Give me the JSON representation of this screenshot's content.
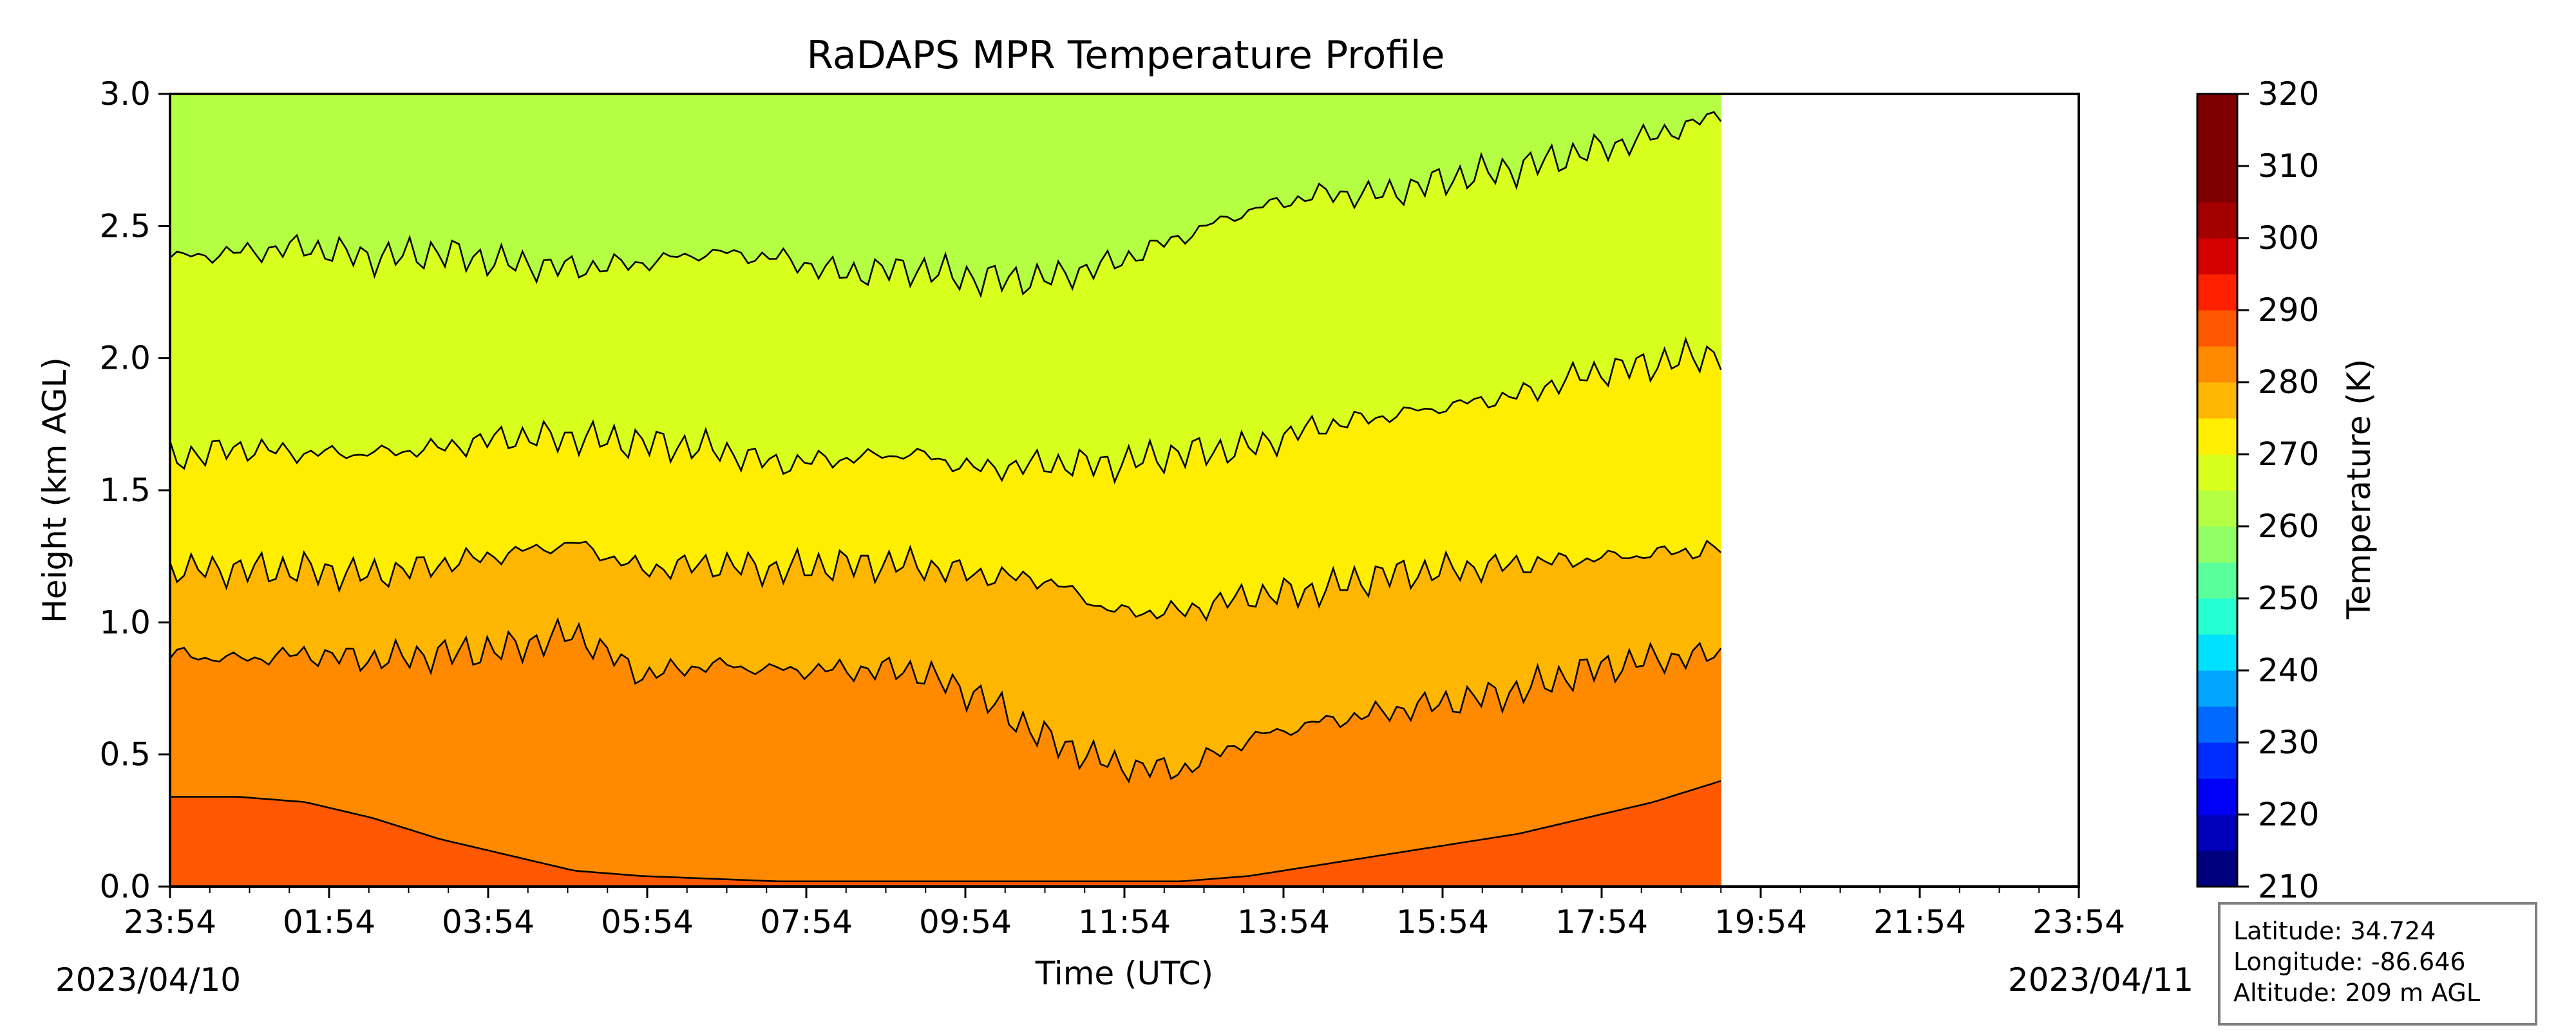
{
  "chart_data": {
    "type": "heatmap",
    "title": "RaDAPS MPR Temperature Profile",
    "xlabel": "Time (UTC)",
    "ylabel": "Height (km AGL)",
    "xticks": [
      "23:54",
      "01:54",
      "03:54",
      "05:54",
      "07:54",
      "09:54",
      "11:54",
      "13:54",
      "15:54",
      "17:54",
      "19:54",
      "21:54",
      "23:54"
    ],
    "xlim_hours": [
      0,
      24
    ],
    "data_end_hours": 19.5,
    "yticks": [
      "0.0",
      "0.5",
      "1.0",
      "1.5",
      "2.0",
      "2.5",
      "3.0"
    ],
    "ylim": [
      0,
      3
    ],
    "start_date": "2023/04/10",
    "end_date": "2023/04/11",
    "colorbar": {
      "label": "Temperature (K)",
      "min": 210,
      "max": 320,
      "step": 5,
      "tick_labels": [
        "210",
        "220",
        "230",
        "240",
        "250",
        "260",
        "270",
        "280",
        "290",
        "300",
        "310",
        "320"
      ],
      "colors": [
        "#00007f",
        "#0000bb",
        "#0000f6",
        "#002dff",
        "#0069ff",
        "#00a5ff",
        "#00e1ff",
        "#25ffd1",
        "#5aff9c",
        "#90ff66",
        "#b4ff43",
        "#d9ff1e",
        "#ffee00",
        "#ffb600",
        "#ff8a00",
        "#ff5800",
        "#ff2000",
        "#d20000",
        "#a30000",
        "#7f0000",
        "#7f0000",
        "#7f0000"
      ]
    },
    "contour_levels_K": [
      265,
      270,
      275,
      280,
      285,
      290
    ],
    "isotherm_heights_km": {
      "265": [
        2.38,
        2.4,
        2.42,
        2.38,
        2.4,
        2.36,
        2.34,
        2.36,
        2.4,
        2.38,
        2.32,
        2.34,
        2.3,
        2.3,
        2.36,
        2.46,
        2.56,
        2.62,
        2.62,
        2.68,
        2.72,
        2.78,
        2.84,
        2.92
      ],
      "270": [
        1.62,
        1.66,
        1.64,
        1.64,
        1.66,
        1.7,
        1.7,
        1.68,
        1.66,
        1.6,
        1.62,
        1.64,
        1.58,
        1.6,
        1.6,
        1.64,
        1.66,
        1.74,
        1.78,
        1.82,
        1.86,
        1.94,
        1.98,
        2.02
      ],
      "275": [
        1.2,
        1.2,
        1.2,
        1.18,
        1.22,
        1.26,
        1.3,
        1.2,
        1.22,
        1.2,
        1.22,
        1.22,
        1.18,
        1.16,
        1.04,
        1.04,
        1.1,
        1.12,
        1.18,
        1.2,
        1.22,
        1.24,
        1.26,
        1.28
      ],
      "280": [
        0.88,
        0.86,
        0.88,
        0.86,
        0.88,
        0.9,
        0.96,
        0.8,
        0.84,
        0.82,
        0.82,
        0.82,
        0.72,
        0.56,
        0.46,
        0.44,
        0.56,
        0.62,
        0.66,
        0.7,
        0.74,
        0.82,
        0.86,
        0.88
      ],
      "285": [
        0.34,
        0.34,
        0.32,
        0.26,
        0.18,
        0.12,
        0.06,
        0.04,
        0.03,
        0.02,
        0.02,
        0.02,
        0.02,
        0.02,
        0.02,
        0.02,
        0.04,
        0.08,
        0.12,
        0.16,
        0.2,
        0.26,
        0.32,
        0.4
      ]
    },
    "station_info": {
      "latitude": "Latitude: 34.724",
      "longitude": "Longitude: -86.646",
      "altitude": "Altitude: 209 m AGL"
    }
  }
}
